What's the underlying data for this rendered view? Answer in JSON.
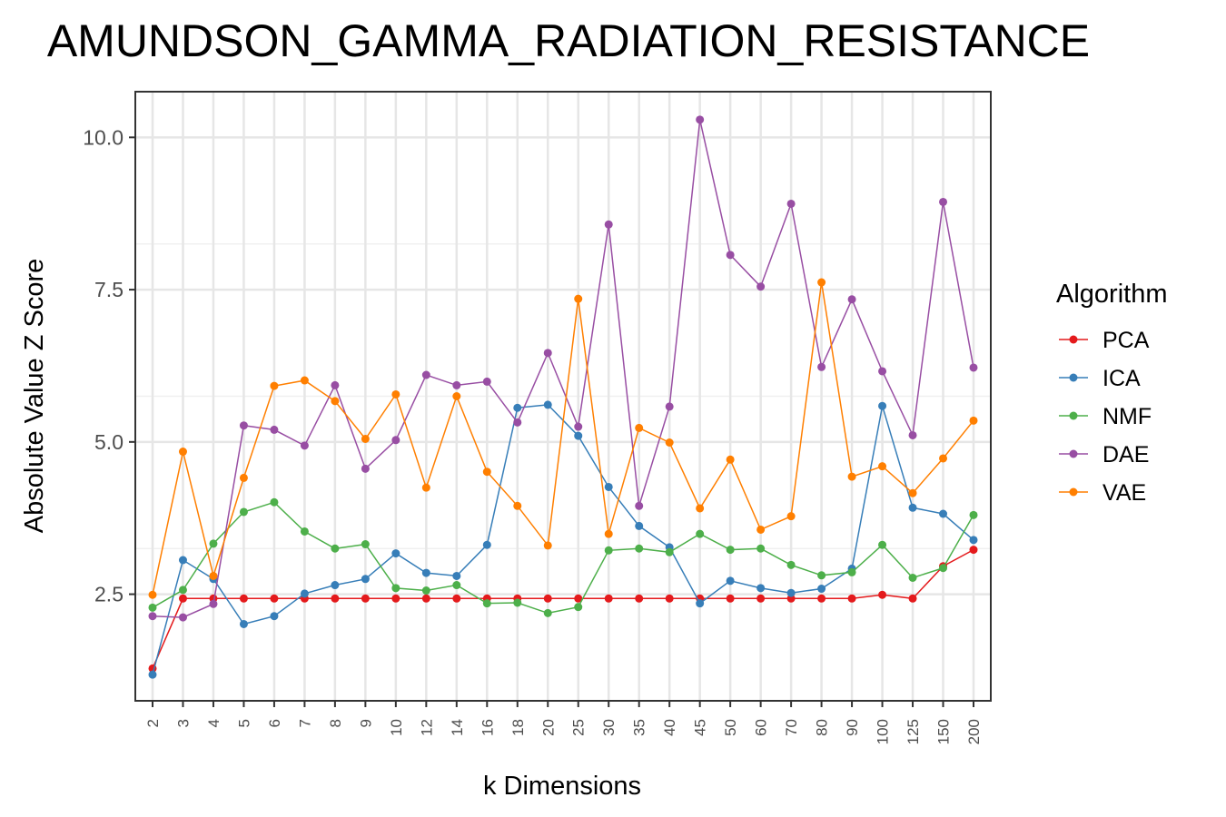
{
  "chart_data": {
    "type": "line",
    "title": "AMUNDSON_GAMMA_RADIATION_RESISTANCE",
    "xlabel": "k Dimensions",
    "ylabel": "Absolute Value Z Score",
    "categories": [
      "2",
      "3",
      "4",
      "5",
      "6",
      "7",
      "8",
      "9",
      "10",
      "12",
      "14",
      "16",
      "18",
      "20",
      "25",
      "30",
      "35",
      "40",
      "45",
      "50",
      "60",
      "70",
      "80",
      "90",
      "100",
      "125",
      "150",
      "200"
    ],
    "yticks": [
      "2.5",
      "5.0",
      "7.5",
      "10.0"
    ],
    "ylim": [
      0.75,
      10.75
    ],
    "grid": true,
    "legend": {
      "title": "Algorithm",
      "position": "right"
    },
    "series": [
      {
        "name": "PCA",
        "color": "#e41a1c",
        "values": [
          1.28,
          2.43,
          2.43,
          2.43,
          2.43,
          2.43,
          2.43,
          2.43,
          2.43,
          2.43,
          2.43,
          2.43,
          2.43,
          2.43,
          2.43,
          2.43,
          2.43,
          2.43,
          2.43,
          2.43,
          2.43,
          2.43,
          2.43,
          2.43,
          2.49,
          2.43,
          2.96,
          3.23
        ]
      },
      {
        "name": "ICA",
        "color": "#377eb8",
        "values": [
          1.18,
          3.06,
          2.75,
          2.01,
          2.14,
          2.51,
          2.65,
          2.75,
          3.17,
          2.85,
          2.8,
          3.31,
          5.56,
          5.61,
          5.1,
          4.26,
          3.62,
          3.27,
          2.35,
          2.72,
          2.6,
          2.52,
          2.59,
          2.92,
          5.59,
          3.92,
          3.82,
          3.39
        ]
      },
      {
        "name": "NMF",
        "color": "#4daf4a",
        "values": [
          2.28,
          2.57,
          3.33,
          3.85,
          4.01,
          3.53,
          3.25,
          3.32,
          2.6,
          2.56,
          2.65,
          2.35,
          2.36,
          2.19,
          2.29,
          3.22,
          3.25,
          3.19,
          3.49,
          3.23,
          3.25,
          2.98,
          2.81,
          2.86,
          3.31,
          2.77,
          2.93,
          3.8
        ]
      },
      {
        "name": "DAE",
        "color": "#984ea3",
        "values": [
          2.14,
          2.12,
          2.34,
          5.27,
          5.2,
          4.94,
          5.93,
          4.56,
          5.03,
          6.1,
          5.93,
          5.99,
          5.32,
          6.46,
          5.25,
          8.57,
          3.95,
          5.58,
          10.29,
          8.07,
          7.55,
          8.91,
          6.23,
          7.34,
          6.16,
          5.11,
          8.94,
          6.22
        ]
      },
      {
        "name": "VAE",
        "color": "#ff7f00",
        "values": [
          2.49,
          4.84,
          2.8,
          4.41,
          5.92,
          6.01,
          5.67,
          5.05,
          5.78,
          4.25,
          5.75,
          4.51,
          3.95,
          3.3,
          7.35,
          3.49,
          5.23,
          4.99,
          3.91,
          4.71,
          3.56,
          3.78,
          7.62,
          4.43,
          4.6,
          4.16,
          4.73,
          5.35
        ]
      }
    ]
  }
}
